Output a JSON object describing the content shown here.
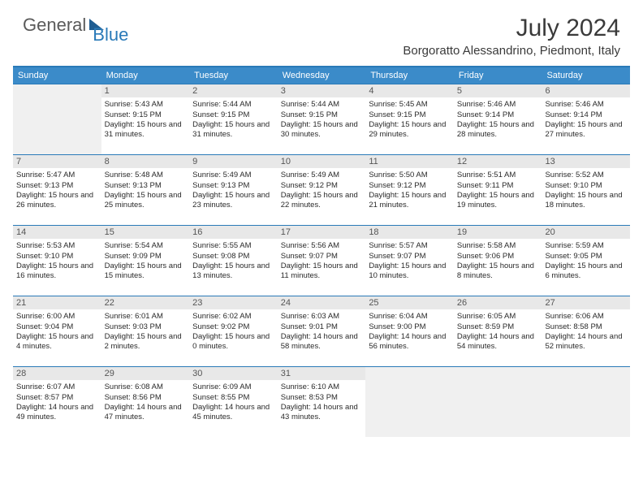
{
  "brand": {
    "general": "General",
    "blue": "Blue"
  },
  "title": "July 2024",
  "location": "Borgoratto Alessandrino, Piedmont, Italy",
  "colors": {
    "header_bar": "#3b8bc9",
    "accent_line": "#2a7ab8",
    "daynum_bg": "#e8e8e8",
    "empty_bg": "#f0f0f0",
    "text": "#2a2a2a",
    "logo_gray": "#5a5a5a",
    "logo_blue": "#2a7ab8"
  },
  "layout": {
    "columns": 7,
    "rows": 5,
    "cell_fontsize_pt": 7,
    "title_fontsize_pt": 22,
    "location_fontsize_pt": 11,
    "weekday_fontsize_pt": 8
  },
  "weekdays": [
    "Sunday",
    "Monday",
    "Tuesday",
    "Wednesday",
    "Thursday",
    "Friday",
    "Saturday"
  ],
  "weeks": [
    [
      {
        "empty": true
      },
      {
        "n": "1",
        "sunrise": "5:43 AM",
        "sunset": "9:15 PM",
        "daylight": "15 hours and 31 minutes."
      },
      {
        "n": "2",
        "sunrise": "5:44 AM",
        "sunset": "9:15 PM",
        "daylight": "15 hours and 31 minutes."
      },
      {
        "n": "3",
        "sunrise": "5:44 AM",
        "sunset": "9:15 PM",
        "daylight": "15 hours and 30 minutes."
      },
      {
        "n": "4",
        "sunrise": "5:45 AM",
        "sunset": "9:15 PM",
        "daylight": "15 hours and 29 minutes."
      },
      {
        "n": "5",
        "sunrise": "5:46 AM",
        "sunset": "9:14 PM",
        "daylight": "15 hours and 28 minutes."
      },
      {
        "n": "6",
        "sunrise": "5:46 AM",
        "sunset": "9:14 PM",
        "daylight": "15 hours and 27 minutes."
      }
    ],
    [
      {
        "n": "7",
        "sunrise": "5:47 AM",
        "sunset": "9:13 PM",
        "daylight": "15 hours and 26 minutes."
      },
      {
        "n": "8",
        "sunrise": "5:48 AM",
        "sunset": "9:13 PM",
        "daylight": "15 hours and 25 minutes."
      },
      {
        "n": "9",
        "sunrise": "5:49 AM",
        "sunset": "9:13 PM",
        "daylight": "15 hours and 23 minutes."
      },
      {
        "n": "10",
        "sunrise": "5:49 AM",
        "sunset": "9:12 PM",
        "daylight": "15 hours and 22 minutes."
      },
      {
        "n": "11",
        "sunrise": "5:50 AM",
        "sunset": "9:12 PM",
        "daylight": "15 hours and 21 minutes."
      },
      {
        "n": "12",
        "sunrise": "5:51 AM",
        "sunset": "9:11 PM",
        "daylight": "15 hours and 19 minutes."
      },
      {
        "n": "13",
        "sunrise": "5:52 AM",
        "sunset": "9:10 PM",
        "daylight": "15 hours and 18 minutes."
      }
    ],
    [
      {
        "n": "14",
        "sunrise": "5:53 AM",
        "sunset": "9:10 PM",
        "daylight": "15 hours and 16 minutes."
      },
      {
        "n": "15",
        "sunrise": "5:54 AM",
        "sunset": "9:09 PM",
        "daylight": "15 hours and 15 minutes."
      },
      {
        "n": "16",
        "sunrise": "5:55 AM",
        "sunset": "9:08 PM",
        "daylight": "15 hours and 13 minutes."
      },
      {
        "n": "17",
        "sunrise": "5:56 AM",
        "sunset": "9:07 PM",
        "daylight": "15 hours and 11 minutes."
      },
      {
        "n": "18",
        "sunrise": "5:57 AM",
        "sunset": "9:07 PM",
        "daylight": "15 hours and 10 minutes."
      },
      {
        "n": "19",
        "sunrise": "5:58 AM",
        "sunset": "9:06 PM",
        "daylight": "15 hours and 8 minutes."
      },
      {
        "n": "20",
        "sunrise": "5:59 AM",
        "sunset": "9:05 PM",
        "daylight": "15 hours and 6 minutes."
      }
    ],
    [
      {
        "n": "21",
        "sunrise": "6:00 AM",
        "sunset": "9:04 PM",
        "daylight": "15 hours and 4 minutes."
      },
      {
        "n": "22",
        "sunrise": "6:01 AM",
        "sunset": "9:03 PM",
        "daylight": "15 hours and 2 minutes."
      },
      {
        "n": "23",
        "sunrise": "6:02 AM",
        "sunset": "9:02 PM",
        "daylight": "15 hours and 0 minutes."
      },
      {
        "n": "24",
        "sunrise": "6:03 AM",
        "sunset": "9:01 PM",
        "daylight": "14 hours and 58 minutes."
      },
      {
        "n": "25",
        "sunrise": "6:04 AM",
        "sunset": "9:00 PM",
        "daylight": "14 hours and 56 minutes."
      },
      {
        "n": "26",
        "sunrise": "6:05 AM",
        "sunset": "8:59 PM",
        "daylight": "14 hours and 54 minutes."
      },
      {
        "n": "27",
        "sunrise": "6:06 AM",
        "sunset": "8:58 PM",
        "daylight": "14 hours and 52 minutes."
      }
    ],
    [
      {
        "n": "28",
        "sunrise": "6:07 AM",
        "sunset": "8:57 PM",
        "daylight": "14 hours and 49 minutes."
      },
      {
        "n": "29",
        "sunrise": "6:08 AM",
        "sunset": "8:56 PM",
        "daylight": "14 hours and 47 minutes."
      },
      {
        "n": "30",
        "sunrise": "6:09 AM",
        "sunset": "8:55 PM",
        "daylight": "14 hours and 45 minutes."
      },
      {
        "n": "31",
        "sunrise": "6:10 AM",
        "sunset": "8:53 PM",
        "daylight": "14 hours and 43 minutes."
      },
      {
        "empty": true
      },
      {
        "empty": true
      },
      {
        "empty": true
      }
    ]
  ],
  "labels": {
    "sunrise": "Sunrise:",
    "sunset": "Sunset:",
    "daylight": "Daylight:"
  }
}
